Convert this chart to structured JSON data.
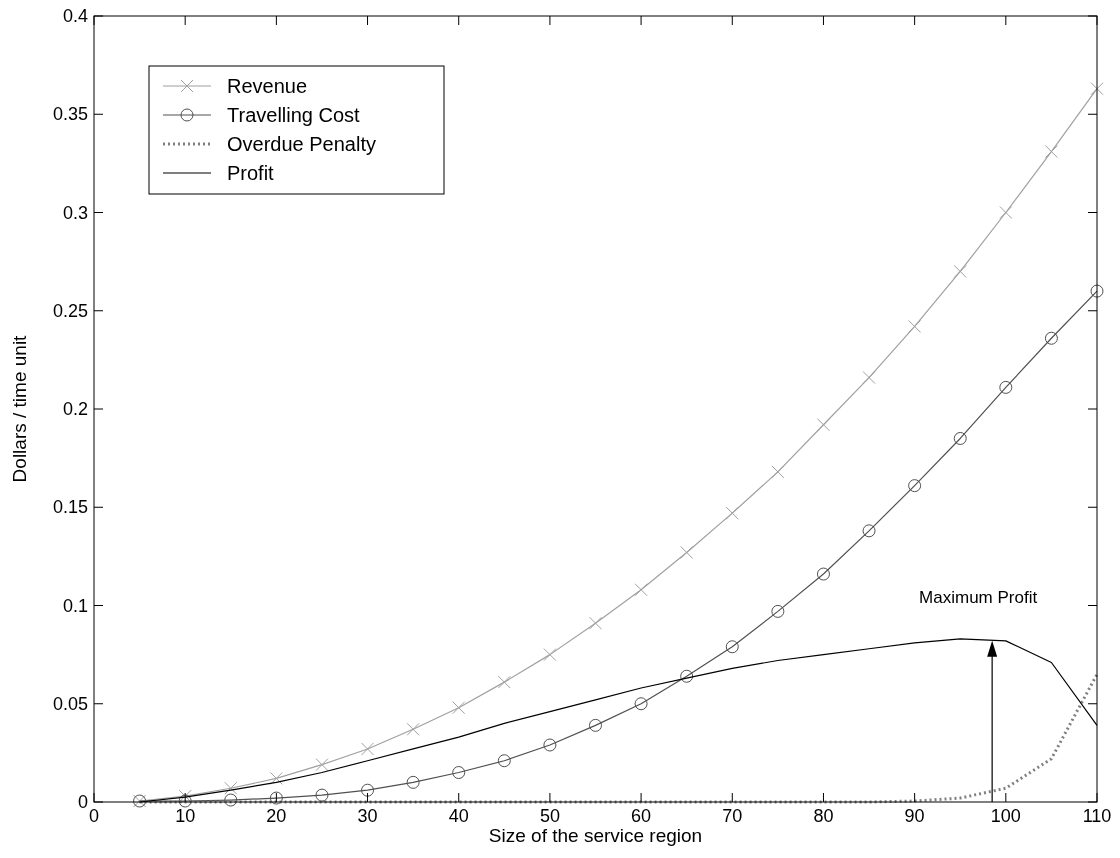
{
  "chart_data": {
    "type": "line",
    "xlabel": "Size of the service region",
    "ylabel": "Dollars / time unit",
    "x": [
      5,
      10,
      15,
      20,
      25,
      30,
      35,
      40,
      45,
      50,
      55,
      60,
      65,
      70,
      75,
      80,
      85,
      90,
      95,
      100,
      105,
      110
    ],
    "series": [
      {
        "name": "Revenue",
        "color": "#a0a0a0",
        "marker": "cross",
        "line_style": "solid",
        "values": [
          0.0005,
          0.003,
          0.007,
          0.012,
          0.019,
          0.027,
          0.037,
          0.048,
          0.061,
          0.075,
          0.091,
          0.108,
          0.127,
          0.147,
          0.168,
          0.192,
          0.216,
          0.242,
          0.27,
          0.3,
          0.331,
          0.363
        ]
      },
      {
        "name": "Travelling Cost",
        "color": "#505050",
        "marker": "circle",
        "line_style": "solid",
        "values": [
          0.0005,
          0.0005,
          0.001,
          0.002,
          0.0035,
          0.006,
          0.01,
          0.015,
          0.021,
          0.029,
          0.039,
          0.05,
          0.064,
          0.079,
          0.097,
          0.116,
          0.138,
          0.161,
          0.185,
          0.211,
          0.236,
          0.26
        ]
      },
      {
        "name": "Overdue Penalty",
        "color": "#808080",
        "marker": "none",
        "line_style": "dotted",
        "values": [
          0,
          0,
          0,
          0,
          0,
          0,
          0,
          0,
          0,
          0,
          0,
          0,
          0,
          0,
          0,
          0,
          0,
          0.0005,
          0.002,
          0.007,
          0.022,
          0.065
        ]
      },
      {
        "name": "Profit",
        "color": "#000000",
        "marker": "none",
        "line_style": "solid",
        "values": [
          0,
          0.0025,
          0.006,
          0.01,
          0.015,
          0.021,
          0.027,
          0.033,
          0.04,
          0.046,
          0.052,
          0.058,
          0.063,
          0.068,
          0.072,
          0.075,
          0.078,
          0.081,
          0.083,
          0.082,
          0.071,
          0.039
        ]
      }
    ],
    "xlim": [
      0,
      110
    ],
    "xticks": [
      0,
      10,
      20,
      30,
      40,
      50,
      60,
      70,
      80,
      90,
      100,
      110
    ],
    "ylim": [
      0,
      0.4
    ],
    "yticks": [
      0,
      0.05,
      0.1,
      0.15,
      0.2,
      0.25,
      0.3,
      0.35,
      0.4
    ],
    "grid": false,
    "legend": "top left",
    "annotations": [
      {
        "text": "Maximum Profit",
        "x": 98.5,
        "y": 0.082
      }
    ]
  }
}
